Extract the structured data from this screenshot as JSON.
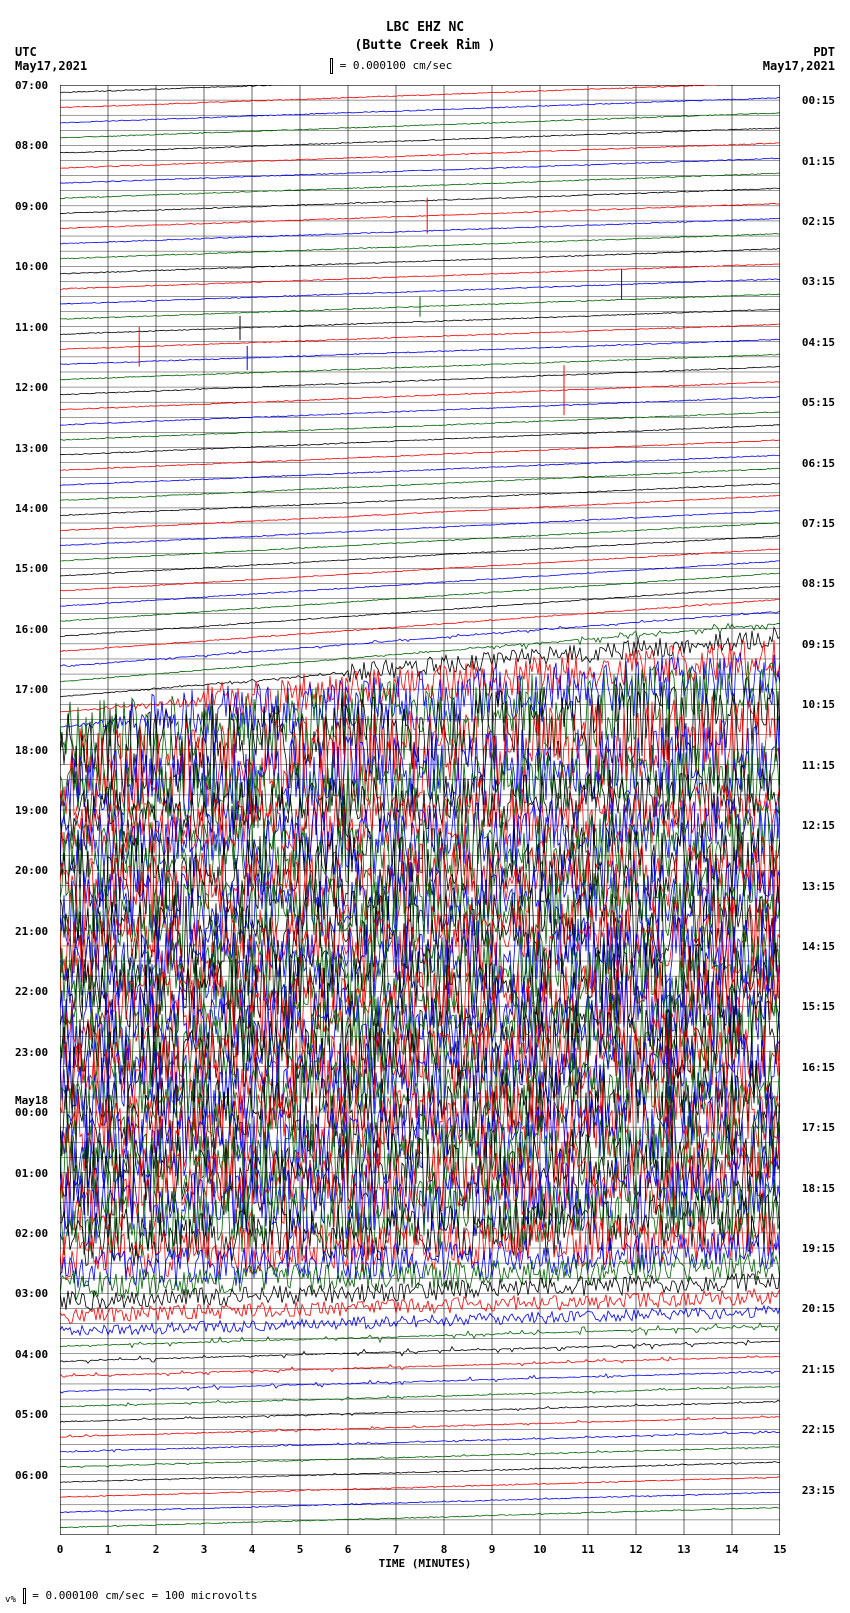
{
  "station": {
    "code": "LBC EHZ NC",
    "name": "(Butte Creek Rim )"
  },
  "scale": {
    "value": "0.000100",
    "unit": "cm/sec",
    "text": "= 0.000100 cm/sec"
  },
  "timezones": {
    "left": {
      "tz": "UTC",
      "date": "May17,2021"
    },
    "right": {
      "tz": "PDT",
      "date": "May17,2021"
    }
  },
  "footer": {
    "scale_value": "0.000100",
    "scale_unit": "cm/sec",
    "microvolts": "100",
    "microvolts_unit": "microvolts",
    "text": "= 0.000100 cm/sec =    100 microvolts"
  },
  "x_axis": {
    "title": "TIME (MINUTES)",
    "ticks": [
      0,
      1,
      2,
      3,
      4,
      5,
      6,
      7,
      8,
      9,
      10,
      11,
      12,
      13,
      14,
      15
    ]
  },
  "plot": {
    "colors": {
      "black": "#000000",
      "red": "#ff0000",
      "blue": "#0000ff",
      "green": "#006400"
    },
    "background": "#ffffff",
    "grid_color": "#000000",
    "color_cycle": [
      "black",
      "red",
      "blue",
      "green"
    ],
    "left_labels": [
      {
        "t": "07:00",
        "row": 0
      },
      {
        "t": "08:00",
        "row": 4
      },
      {
        "t": "09:00",
        "row": 8
      },
      {
        "t": "10:00",
        "row": 12
      },
      {
        "t": "11:00",
        "row": 16
      },
      {
        "t": "12:00",
        "row": 20
      },
      {
        "t": "13:00",
        "row": 24
      },
      {
        "t": "14:00",
        "row": 28
      },
      {
        "t": "15:00",
        "row": 32
      },
      {
        "t": "16:00",
        "row": 36
      },
      {
        "t": "17:00",
        "row": 40
      },
      {
        "t": "18:00",
        "row": 44
      },
      {
        "t": "19:00",
        "row": 48
      },
      {
        "t": "20:00",
        "row": 52
      },
      {
        "t": "21:00",
        "row": 56
      },
      {
        "t": "22:00",
        "row": 60
      },
      {
        "t": "23:00",
        "row": 64
      },
      {
        "t": "May18",
        "row": 67.2
      },
      {
        "t": "00:00",
        "row": 68
      },
      {
        "t": "01:00",
        "row": 72
      },
      {
        "t": "02:00",
        "row": 76
      },
      {
        "t": "03:00",
        "row": 80
      },
      {
        "t": "04:00",
        "row": 84
      },
      {
        "t": "05:00",
        "row": 88
      },
      {
        "t": "06:00",
        "row": 92
      }
    ],
    "right_labels": [
      {
        "t": "00:15",
        "row": 1
      },
      {
        "t": "01:15",
        "row": 5
      },
      {
        "t": "02:15",
        "row": 9
      },
      {
        "t": "03:15",
        "row": 13
      },
      {
        "t": "04:15",
        "row": 17
      },
      {
        "t": "05:15",
        "row": 21
      },
      {
        "t": "06:15",
        "row": 25
      },
      {
        "t": "07:15",
        "row": 29
      },
      {
        "t": "08:15",
        "row": 33
      },
      {
        "t": "09:15",
        "row": 37
      },
      {
        "t": "10:15",
        "row": 41
      },
      {
        "t": "11:15",
        "row": 45
      },
      {
        "t": "12:15",
        "row": 49
      },
      {
        "t": "13:15",
        "row": 53
      },
      {
        "t": "14:15",
        "row": 57
      },
      {
        "t": "15:15",
        "row": 61
      },
      {
        "t": "16:15",
        "row": 65
      },
      {
        "t": "17:15",
        "row": 69
      },
      {
        "t": "18:15",
        "row": 73
      },
      {
        "t": "19:15",
        "row": 77
      },
      {
        "t": "20:15",
        "row": 81
      },
      {
        "t": "21:15",
        "row": 85
      },
      {
        "t": "22:15",
        "row": 89
      },
      {
        "t": "23:15",
        "row": 93
      }
    ],
    "n_rows": 96,
    "traces": [
      {
        "row": 0,
        "drift": -25,
        "amp": 0.5,
        "noise": 0.02,
        "spikes": []
      },
      {
        "row": 1,
        "drift": -25,
        "amp": 0.5,
        "noise": 0.02,
        "spikes": []
      },
      {
        "row": 2,
        "drift": -25,
        "amp": 0.5,
        "noise": 0.02,
        "spikes": []
      },
      {
        "row": 3,
        "drift": -25,
        "amp": 0.5,
        "noise": 0.02,
        "spikes": []
      },
      {
        "row": 4,
        "drift": -25,
        "amp": 0.5,
        "noise": 0.02,
        "spikes": []
      },
      {
        "row": 5,
        "drift": -25,
        "amp": 0.5,
        "noise": 0.02,
        "spikes": []
      },
      {
        "row": 6,
        "drift": -25,
        "amp": 0.5,
        "noise": 0.02,
        "spikes": []
      },
      {
        "row": 7,
        "drift": -25,
        "amp": 0.5,
        "noise": 0.02,
        "spikes": []
      },
      {
        "row": 8,
        "drift": -25,
        "amp": 0.5,
        "noise": 0.02,
        "spikes": []
      },
      {
        "row": 9,
        "drift": -25,
        "amp": 0.5,
        "noise": 0.02,
        "spikes": [
          {
            "x": 0.51,
            "h": 18
          }
        ]
      },
      {
        "row": 10,
        "drift": -25,
        "amp": 0.5,
        "noise": 0.02,
        "spikes": []
      },
      {
        "row": 11,
        "drift": -25,
        "amp": 0.5,
        "noise": 0.02,
        "spikes": []
      },
      {
        "row": 12,
        "drift": -25,
        "amp": 0.5,
        "noise": 0.03,
        "spikes": []
      },
      {
        "row": 13,
        "drift": -25,
        "amp": 0.5,
        "noise": 0.03,
        "spikes": []
      },
      {
        "row": 14,
        "drift": -25,
        "amp": 0.5,
        "noise": 0.03,
        "spikes": [
          {
            "x": 0.78,
            "h": 15
          }
        ]
      },
      {
        "row": 15,
        "drift": -25,
        "amp": 0.5,
        "noise": 0.03,
        "spikes": [
          {
            "x": 0.5,
            "h": 10
          }
        ]
      },
      {
        "row": 16,
        "drift": -25,
        "amp": 0.5,
        "noise": 0.03,
        "spikes": [
          {
            "x": 0.25,
            "h": 12
          }
        ]
      },
      {
        "row": 17,
        "drift": -25,
        "amp": 0.5,
        "noise": 0.03,
        "spikes": [
          {
            "x": 0.11,
            "h": 20
          }
        ]
      },
      {
        "row": 18,
        "drift": -25,
        "amp": 0.5,
        "noise": 0.03,
        "spikes": [
          {
            "x": 0.26,
            "h": 12
          }
        ]
      },
      {
        "row": 19,
        "drift": -25,
        "amp": 0.5,
        "noise": 0.03,
        "spikes": []
      },
      {
        "row": 20,
        "drift": -28,
        "amp": 0.5,
        "noise": 0.03,
        "spikes": []
      },
      {
        "row": 21,
        "drift": -28,
        "amp": 0.5,
        "noise": 0.03,
        "spikes": [
          {
            "x": 0.7,
            "h": 25
          }
        ]
      },
      {
        "row": 22,
        "drift": -28,
        "amp": 0.5,
        "noise": 0.03,
        "spikes": []
      },
      {
        "row": 23,
        "drift": -28,
        "amp": 0.5,
        "noise": 0.03,
        "spikes": []
      },
      {
        "row": 24,
        "drift": -30,
        "amp": 0.5,
        "noise": 0.03,
        "spikes": []
      },
      {
        "row": 25,
        "drift": -30,
        "amp": 0.5,
        "noise": 0.03,
        "spikes": []
      },
      {
        "row": 26,
        "drift": -30,
        "amp": 0.5,
        "noise": 0.03,
        "spikes": []
      },
      {
        "row": 27,
        "drift": -32,
        "amp": 0.5,
        "noise": 0.03,
        "spikes": []
      },
      {
        "row": 28,
        "drift": -32,
        "amp": 0.5,
        "noise": 0.03,
        "spikes": []
      },
      {
        "row": 29,
        "drift": -35,
        "amp": 0.5,
        "noise": 0.03,
        "spikes": []
      },
      {
        "row": 30,
        "drift": -35,
        "amp": 0.5,
        "noise": 0.03,
        "spikes": []
      },
      {
        "row": 31,
        "drift": -38,
        "amp": 0.5,
        "noise": 0.03,
        "spikes": []
      },
      {
        "row": 32,
        "drift": -40,
        "amp": 0.5,
        "noise": 0.03,
        "spikes": []
      },
      {
        "row": 33,
        "drift": -42,
        "amp": 0.5,
        "noise": 0.03,
        "spikes": []
      },
      {
        "row": 34,
        "drift": -45,
        "amp": 0.5,
        "noise": 0.03,
        "spikes": []
      },
      {
        "row": 35,
        "drift": -48,
        "amp": 0.5,
        "noise": 0.03,
        "spikes": []
      },
      {
        "row": 36,
        "drift": -50,
        "amp": 0.8,
        "noise": 0.05,
        "spikes": []
      },
      {
        "row": 37,
        "drift": -52,
        "amp": 1,
        "noise": 0.08,
        "spikes": []
      },
      {
        "row": 38,
        "drift": -55,
        "amp": 2,
        "noise": 0.1,
        "spikes": []
      },
      {
        "row": 39,
        "drift": -58,
        "amp": 5,
        "noise": 0.15,
        "onset": 0.6,
        "spikes": []
      },
      {
        "row": 40,
        "drift": -60,
        "amp": 10,
        "noise": 0.2,
        "onset": 0.4,
        "spikes": []
      },
      {
        "row": 41,
        "drift": -55,
        "amp": 20,
        "noise": 0.3,
        "onset": 0.2,
        "spikes": []
      },
      {
        "row": 42,
        "drift": -50,
        "amp": 30,
        "noise": 0.4,
        "onset": 0.1,
        "spikes": []
      },
      {
        "row": 43,
        "drift": -45,
        "amp": 40,
        "noise": 0.5,
        "spikes": []
      },
      {
        "row": 44,
        "drift": -40,
        "amp": 45,
        "noise": 0.5,
        "spikes": []
      },
      {
        "row": 45,
        "drift": -35,
        "amp": 45,
        "noise": 0.5,
        "spikes": []
      },
      {
        "row": 46,
        "drift": -30,
        "amp": 40,
        "noise": 0.5,
        "spikes": []
      },
      {
        "row": 47,
        "drift": -28,
        "amp": 35,
        "noise": 0.5,
        "spikes": []
      },
      {
        "row": 48,
        "drift": -25,
        "amp": 30,
        "noise": 0.5,
        "spikes": []
      },
      {
        "row": 49,
        "drift": -22,
        "amp": 30,
        "noise": 0.5,
        "spikes": []
      },
      {
        "row": 50,
        "drift": -20,
        "amp": 35,
        "noise": 0.5,
        "spikes": []
      },
      {
        "row": 51,
        "drift": -20,
        "amp": 40,
        "noise": 0.5,
        "spikes": []
      },
      {
        "row": 52,
        "drift": -20,
        "amp": 40,
        "noise": 0.5,
        "spikes": []
      },
      {
        "row": 53,
        "drift": -20,
        "amp": 40,
        "noise": 0.5,
        "spikes": []
      },
      {
        "row": 54,
        "drift": -20,
        "amp": 40,
        "noise": 0.5,
        "spikes": []
      },
      {
        "row": 55,
        "drift": -20,
        "amp": 40,
        "noise": 0.5,
        "spikes": []
      },
      {
        "row": 56,
        "drift": -20,
        "amp": 40,
        "noise": 0.5,
        "spikes": []
      },
      {
        "row": 57,
        "drift": -20,
        "amp": 40,
        "noise": 0.5,
        "spikes": []
      },
      {
        "row": 58,
        "drift": -20,
        "amp": 40,
        "noise": 0.5,
        "spikes": []
      },
      {
        "row": 59,
        "drift": -20,
        "amp": 40,
        "noise": 0.5,
        "spikes": []
      },
      {
        "row": 60,
        "drift": -20,
        "amp": 40,
        "noise": 0.5,
        "spikes": []
      },
      {
        "row": 61,
        "drift": -20,
        "amp": 40,
        "noise": 0.5,
        "spikes": []
      },
      {
        "row": 62,
        "drift": -20,
        "amp": 40,
        "noise": 0.5,
        "spikes": []
      },
      {
        "row": 63,
        "drift": -20,
        "amp": 40,
        "noise": 0.5,
        "spikes": []
      },
      {
        "row": 64,
        "drift": -20,
        "amp": 40,
        "noise": 0.5,
        "spikes": []
      },
      {
        "row": 65,
        "drift": -20,
        "amp": 40,
        "noise": 0.5,
        "spikes": []
      },
      {
        "row": 66,
        "drift": -20,
        "amp": 40,
        "noise": 0.5,
        "spikes": []
      },
      {
        "row": 67,
        "drift": -20,
        "amp": 40,
        "noise": 0.5,
        "spikes": []
      },
      {
        "row": 68,
        "drift": -20,
        "amp": 40,
        "noise": 0.5,
        "spikes": []
      },
      {
        "row": 69,
        "drift": -20,
        "amp": 40,
        "noise": 0.5,
        "spikes": []
      },
      {
        "row": 70,
        "drift": -20,
        "amp": 40,
        "noise": 0.5,
        "spikes": []
      },
      {
        "row": 71,
        "drift": -20,
        "amp": 40,
        "noise": 0.5,
        "spikes": []
      },
      {
        "row": 72,
        "drift": -20,
        "amp": 40,
        "noise": 0.5,
        "spikes": []
      },
      {
        "row": 73,
        "drift": -20,
        "amp": 40,
        "noise": 0.5,
        "spikes": []
      },
      {
        "row": 74,
        "drift": -20,
        "amp": 38,
        "noise": 0.45,
        "spikes": []
      },
      {
        "row": 75,
        "drift": -20,
        "amp": 35,
        "noise": 0.4,
        "spikes": []
      },
      {
        "row": 76,
        "drift": -20,
        "amp": 30,
        "noise": 0.35,
        "spikes": []
      },
      {
        "row": 77,
        "drift": -20,
        "amp": 25,
        "noise": 0.3,
        "spikes": []
      },
      {
        "row": 78,
        "drift": -20,
        "amp": 20,
        "noise": 0.25,
        "spikes": []
      },
      {
        "row": 79,
        "drift": -20,
        "amp": 15,
        "noise": 0.2,
        "spikes": []
      },
      {
        "row": 80,
        "drift": -20,
        "amp": 10,
        "noise": 0.15,
        "spikes": []
      },
      {
        "row": 81,
        "drift": -20,
        "amp": 8,
        "noise": 0.12,
        "spikes": []
      },
      {
        "row": 82,
        "drift": -20,
        "amp": 6,
        "noise": 0.1,
        "spikes": []
      },
      {
        "row": 83,
        "drift": -20,
        "amp": 5,
        "noise": 0.08,
        "spikes": []
      },
      {
        "row": 84,
        "drift": -20,
        "amp": 4,
        "noise": 0.07,
        "spikes": []
      },
      {
        "row": 85,
        "drift": -20,
        "amp": 3,
        "noise": 0.06,
        "spikes": []
      },
      {
        "row": 86,
        "drift": -20,
        "amp": 3,
        "noise": 0.06,
        "spikes": []
      },
      {
        "row": 87,
        "drift": -20,
        "amp": 2,
        "noise": 0.05,
        "spikes": []
      },
      {
        "row": 88,
        "drift": -20,
        "amp": 2,
        "noise": 0.05,
        "spikes": []
      },
      {
        "row": 89,
        "drift": -20,
        "amp": 2,
        "noise": 0.05,
        "spikes": []
      },
      {
        "row": 90,
        "drift": -20,
        "amp": 1.5,
        "noise": 0.04,
        "spikes": []
      },
      {
        "row": 91,
        "drift": -20,
        "amp": 1.5,
        "noise": 0.04,
        "spikes": []
      },
      {
        "row": 92,
        "drift": -20,
        "amp": 1,
        "noise": 0.04,
        "spikes": []
      },
      {
        "row": 93,
        "drift": -20,
        "amp": 1,
        "noise": 0.04,
        "spikes": []
      },
      {
        "row": 94,
        "drift": -20,
        "amp": 1,
        "noise": 0.04,
        "spikes": []
      },
      {
        "row": 95,
        "drift": -20,
        "amp": 1,
        "noise": 0.04,
        "spikes": []
      }
    ]
  }
}
